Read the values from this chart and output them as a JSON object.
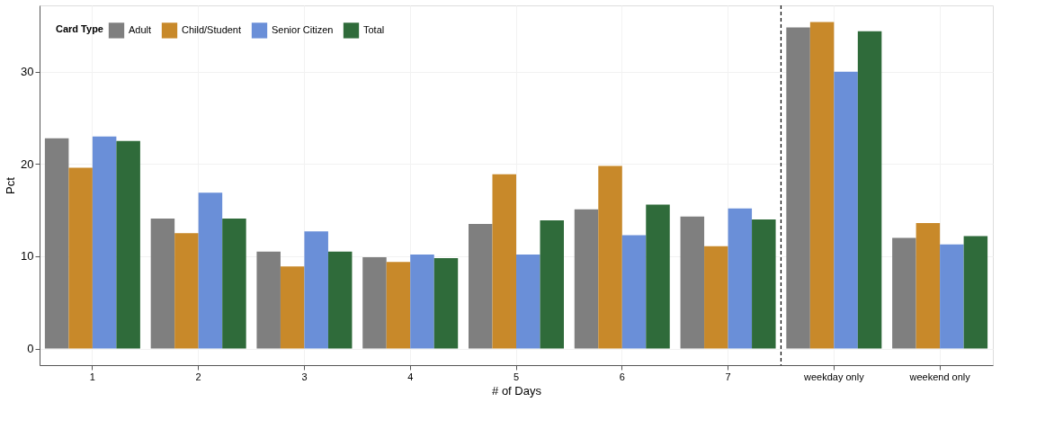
{
  "chart_data": {
    "type": "bar",
    "xlabel": "# of Days",
    "ylabel": "Pct",
    "legend_title": "Card Type",
    "categories": [
      "1",
      "2",
      "3",
      "4",
      "5",
      "6",
      "7",
      "weekday only",
      "weekend only"
    ],
    "series": [
      {
        "name": "Adult",
        "color": "#7f7f7f",
        "values": [
          22.8,
          14.1,
          10.5,
          9.9,
          13.5,
          15.1,
          14.3,
          34.8,
          12.0
        ]
      },
      {
        "name": "Child/Student",
        "color": "#c8892a",
        "values": [
          19.6,
          12.5,
          8.9,
          9.4,
          18.9,
          19.8,
          11.1,
          35.4,
          13.6
        ]
      },
      {
        "name": "Senior Citizen",
        "color": "#6a8fd8",
        "values": [
          23.0,
          16.9,
          12.7,
          10.2,
          10.2,
          12.3,
          15.2,
          30.0,
          11.3
        ]
      },
      {
        "name": "Total",
        "color": "#2f6b3a",
        "values": [
          22.5,
          14.1,
          10.5,
          9.8,
          13.9,
          15.6,
          14.0,
          34.4,
          12.2
        ]
      }
    ],
    "ylim": [
      -1.8,
      37.2
    ],
    "yticks": [
      0,
      10,
      20,
      30
    ],
    "grid": true,
    "legend": "top left",
    "ref_lines": [
      {
        "axis": "x",
        "value": "weekday only",
        "line_style": "dashed",
        "color": "#000000"
      }
    ]
  }
}
